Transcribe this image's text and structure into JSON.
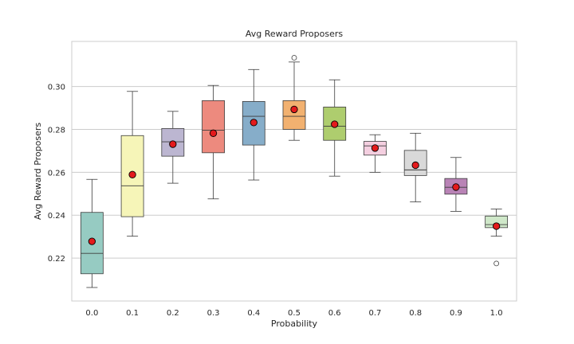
{
  "chart_data": {
    "type": "box",
    "title": "Avg Reward Proposers",
    "xlabel": "Probability",
    "ylabel": "Avg Reward Proposers",
    "ylim": [
      0.2,
      0.321
    ],
    "yticks": [
      0.22,
      0.24,
      0.26,
      0.28,
      0.3
    ],
    "ytick_labels": [
      "0.22",
      "0.24",
      "0.26",
      "0.28",
      "0.30"
    ],
    "grid": true,
    "categories": [
      "0.0",
      "0.1",
      "0.2",
      "0.3",
      "0.4",
      "0.5",
      "0.6",
      "0.7",
      "0.8",
      "0.9",
      "1.0"
    ],
    "boxes": [
      {
        "q1": 0.2127,
        "median": 0.2222,
        "q3": 0.2413,
        "whisker_low": 0.2063,
        "whisker_high": 0.2567,
        "mean": 0.2278,
        "outliers": [],
        "color": "#96cbc2"
      },
      {
        "q1": 0.2393,
        "median": 0.2537,
        "q3": 0.2771,
        "whisker_low": 0.2302,
        "whisker_high": 0.2977,
        "mean": 0.2589,
        "outliers": [],
        "color": "#f6f5b8"
      },
      {
        "q1": 0.2675,
        "median": 0.2742,
        "q3": 0.2804,
        "whisker_low": 0.2549,
        "whisker_high": 0.2884,
        "mean": 0.2731,
        "outliers": [],
        "color": "#bcb6d1"
      },
      {
        "q1": 0.2691,
        "median": 0.2796,
        "q3": 0.2934,
        "whisker_low": 0.2476,
        "whisker_high": 0.3005,
        "mean": 0.2782,
        "outliers": [],
        "color": "#ed8a7e"
      },
      {
        "q1": 0.2727,
        "median": 0.2861,
        "q3": 0.293,
        "whisker_low": 0.2564,
        "whisker_high": 0.3079,
        "mean": 0.2832,
        "outliers": [],
        "color": "#86adc9"
      },
      {
        "q1": 0.28,
        "median": 0.2861,
        "q3": 0.2934,
        "whisker_low": 0.2749,
        "whisker_high": 0.3114,
        "mean": 0.2893,
        "outliers": [
          0.3134
        ],
        "color": "#f2b170"
      },
      {
        "q1": 0.2749,
        "median": 0.2815,
        "q3": 0.2904,
        "whisker_low": 0.2582,
        "whisker_high": 0.3031,
        "mean": 0.2824,
        "outliers": [],
        "color": "#aecd6e"
      },
      {
        "q1": 0.268,
        "median": 0.2723,
        "q3": 0.2744,
        "whisker_low": 0.26,
        "whisker_high": 0.2775,
        "mean": 0.2713,
        "outliers": [],
        "color": "#f4cfe0"
      },
      {
        "q1": 0.2585,
        "median": 0.2611,
        "q3": 0.2702,
        "whisker_low": 0.2462,
        "whisker_high": 0.2782,
        "mean": 0.2633,
        "outliers": [],
        "color": "#d9d9d9"
      },
      {
        "q1": 0.2498,
        "median": 0.253,
        "q3": 0.2571,
        "whisker_low": 0.2418,
        "whisker_high": 0.2669,
        "mean": 0.2531,
        "outliers": [],
        "color": "#b983b6"
      },
      {
        "q1": 0.2342,
        "median": 0.2356,
        "q3": 0.2396,
        "whisker_low": 0.2302,
        "whisker_high": 0.2429,
        "mean": 0.2349,
        "outliers": [
          0.2175
        ],
        "color": "#cfe8c9"
      }
    ],
    "mean_marker_color": "#e31a1c",
    "line_color": "#3c3c3c"
  }
}
